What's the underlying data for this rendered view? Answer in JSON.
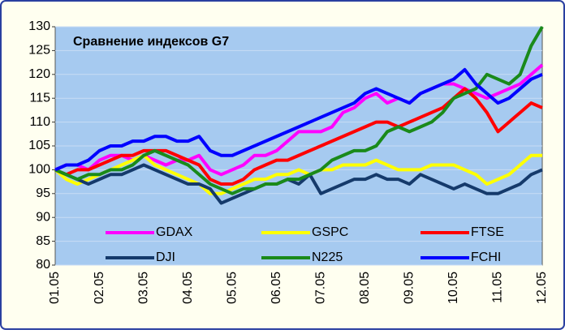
{
  "chart_data": {
    "type": "line",
    "title": "Сравнение  индексов G7",
    "categories": [
      "01.05",
      null,
      null,
      null,
      "02.05",
      null,
      null,
      null,
      "03.05",
      null,
      null,
      null,
      "04.05",
      null,
      null,
      null,
      "05.05",
      null,
      null,
      null,
      "06.05",
      null,
      null,
      null,
      "07.05",
      null,
      null,
      null,
      "08.05",
      null,
      null,
      null,
      "09.05",
      null,
      null,
      null,
      "10.05",
      null,
      null,
      null,
      "11.05",
      null,
      null,
      null,
      "12.05"
    ],
    "series": [
      {
        "name": "GDAX",
        "color": "#ff00ff",
        "values": [
          100,
          101,
          101,
          100,
          102,
          103,
          103,
          102,
          103,
          102,
          101,
          102,
          102,
          103,
          100,
          99,
          100,
          101,
          103,
          103,
          104,
          106,
          108,
          108,
          108,
          109,
          112,
          113,
          115,
          116,
          114,
          115,
          114,
          116,
          117,
          118,
          118,
          117,
          116,
          115,
          116,
          117,
          118,
          120,
          122
        ]
      },
      {
        "name": "GSPC",
        "color": "#ffff00",
        "values": [
          100,
          98,
          97,
          98,
          99,
          100,
          101,
          102,
          103,
          101,
          100,
          99,
          98,
          97,
          95,
          95,
          96,
          97,
          98,
          98,
          99,
          99,
          100,
          99,
          100,
          100,
          101,
          101,
          101,
          102,
          101,
          100,
          100,
          100,
          101,
          101,
          101,
          100,
          99,
          97,
          98,
          99,
          101,
          103,
          103
        ]
      },
      {
        "name": "FTSE",
        "color": "#ff0000",
        "values": [
          100,
          99,
          100,
          100,
          101,
          102,
          103,
          103,
          104,
          104,
          104,
          103,
          102,
          101,
          98,
          97,
          97,
          98,
          100,
          101,
          102,
          102,
          103,
          104,
          105,
          106,
          107,
          108,
          109,
          110,
          110,
          109,
          110,
          111,
          112,
          113,
          115,
          117,
          115,
          112,
          108,
          110,
          112,
          114,
          113
        ]
      },
      {
        "name": "DJI",
        "color": "#153a6b",
        "values": [
          100,
          99,
          98,
          97,
          98,
          99,
          99,
          100,
          101,
          100,
          99,
          98,
          97,
          97,
          96,
          93,
          94,
          95,
          96,
          97,
          97,
          98,
          97,
          99,
          95,
          96,
          97,
          98,
          98,
          99,
          98,
          98,
          97,
          99,
          98,
          97,
          96,
          97,
          96,
          95,
          95,
          96,
          97,
          99,
          100
        ]
      },
      {
        "name": "N225",
        "color": "#1a8a1a",
        "values": [
          100,
          99,
          98,
          99,
          99,
          100,
          100,
          101,
          103,
          104,
          103,
          102,
          101,
          99,
          97,
          96,
          95,
          96,
          96,
          97,
          97,
          98,
          98,
          99,
          100,
          102,
          103,
          104,
          104,
          105,
          108,
          109,
          108,
          109,
          110,
          112,
          115,
          116,
          117,
          120,
          119,
          118,
          120,
          126,
          130
        ]
      },
      {
        "name": "FCHI",
        "color": "#0000ff",
        "values": [
          100,
          101,
          101,
          102,
          104,
          105,
          105,
          106,
          106,
          107,
          107,
          106,
          106,
          107,
          104,
          103,
          103,
          104,
          105,
          106,
          107,
          108,
          109,
          110,
          111,
          112,
          113,
          114,
          116,
          117,
          116,
          115,
          114,
          116,
          117,
          118,
          119,
          121,
          118,
          116,
          114,
          115,
          117,
          119,
          120
        ]
      }
    ],
    "ylim": [
      80,
      130
    ],
    "yticks": [
      80,
      85,
      90,
      95,
      100,
      105,
      110,
      115,
      120,
      125,
      130
    ],
    "grid": true,
    "legend": "bottom"
  }
}
